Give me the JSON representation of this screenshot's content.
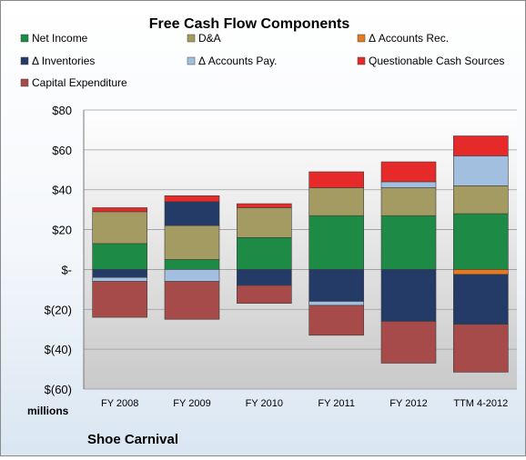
{
  "chart_data": {
    "type": "stacked-bar",
    "title": "Free Cash Flow Components",
    "categories": [
      "FY 2008",
      "FY 2009",
      "FY 2010",
      "FY 2011",
      "FY 2012",
      "TTM 4-2012"
    ],
    "ylim": [
      -60,
      80
    ],
    "yticks": [
      80,
      60,
      40,
      20,
      0,
      -20,
      -40,
      -60
    ],
    "ytick_labels": [
      "$80",
      "$60",
      "$40",
      "$20",
      "$-",
      "$(20)",
      "$(40)",
      "$(60)"
    ],
    "unit_label": "millions",
    "company": "Shoe Carnival",
    "grid": true,
    "legend_position": "top",
    "series": [
      {
        "name": "Net Income",
        "color": "#1d8a45",
        "values": [
          13,
          5,
          16,
          27,
          27,
          28
        ]
      },
      {
        "name": "D&A",
        "color": "#a39b62",
        "values": [
          16,
          17,
          15,
          14,
          14,
          14
        ]
      },
      {
        "name": "Δ Accounts Rec.",
        "color": "#e47a22",
        "values": [
          0,
          0,
          0,
          0,
          0,
          -2.5
        ]
      },
      {
        "name": "Δ Inventories",
        "color": "#233b66",
        "values": [
          -4,
          12,
          -8,
          -16,
          -26,
          -25
        ]
      },
      {
        "name": "Δ Accounts Pay.",
        "color": "#a3bfe0",
        "values": [
          -2,
          -6,
          0,
          -2,
          3,
          15
        ]
      },
      {
        "name": "Questionable Cash Sources",
        "color": "#e62a2a",
        "values": [
          2,
          3,
          2,
          8,
          10,
          10
        ]
      },
      {
        "name": "Capital Expenditure",
        "color": "#a64a4a",
        "values": [
          -18,
          -19,
          -9,
          -15,
          -21,
          -24
        ]
      }
    ]
  }
}
